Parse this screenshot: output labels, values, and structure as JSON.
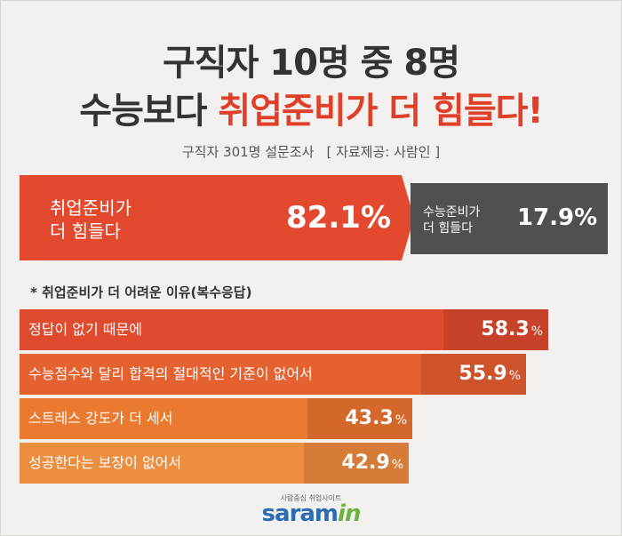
{
  "header": {
    "line1": "구직자 10명 중 8명",
    "line2_prefix": "수능보다 ",
    "line2_accent": "취업준비가 더 힘들다!",
    "subtitle": "구직자 301명 설문조사",
    "source": "[ 자료제공: 사람인 ]"
  },
  "colors": {
    "accent": "#e2492f",
    "dark": "#505050",
    "bar_colors": [
      "#df4a2f",
      "#e56130",
      "#ea7a30",
      "#ec8e3f"
    ],
    "bar_value_colors": [
      "#c8422a",
      "#cf532a",
      "#d4682a",
      "#d77b38"
    ]
  },
  "chart_data": [
    {
      "type": "bar",
      "categories": [
        "취업준비가\n더 힘들다",
        "수능준비가\n더 힘들다"
      ],
      "values": [
        82.1,
        17.9
      ],
      "value_labels": [
        "82.1%",
        "17.9%"
      ]
    },
    {
      "type": "bar",
      "title": "* 취업준비가 더 어려운 이유(복수응답)",
      "categories": [
        "정답이 없기 때문에",
        "수능점수와 달리 합격의 절대적인 기준이 없어서",
        "스트레스 강도가 더 세서",
        "성공한다는 보장이 없어서"
      ],
      "values": [
        58.3,
        55.9,
        43.3,
        42.9
      ],
      "value_text": [
        "58.3",
        "55.9",
        "43.3",
        "42.9"
      ],
      "unit": "%"
    }
  ],
  "logo": {
    "tagline": "사람중심 취업사이트",
    "name_main": "saram",
    "name_accent": "in"
  }
}
